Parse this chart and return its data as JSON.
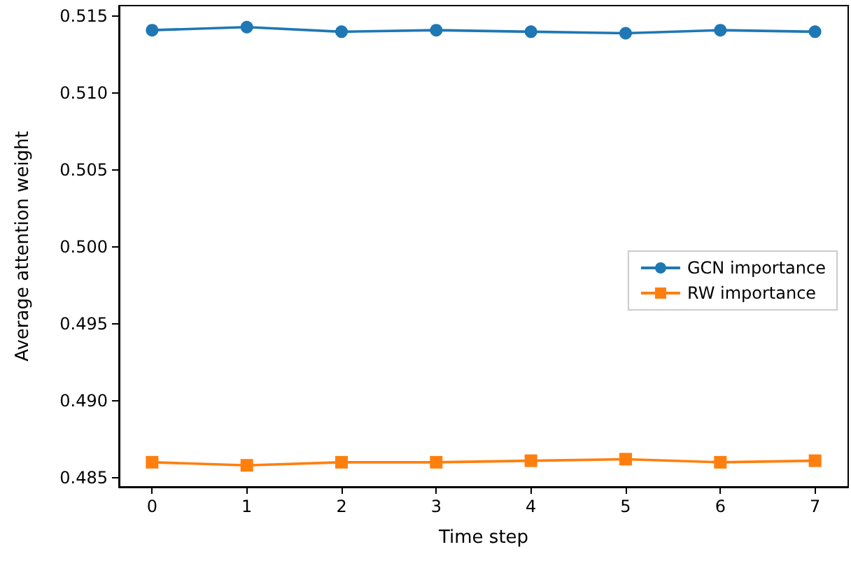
{
  "chart_data": {
    "type": "line",
    "xlabel": "Time step",
    "ylabel": "Average attention weight",
    "x": [
      0,
      1,
      2,
      3,
      4,
      5,
      6,
      7
    ],
    "series": [
      {
        "name": "GCN importance",
        "color": "#1f77b4",
        "marker": "circle",
        "values": [
          0.5141,
          0.5143,
          0.514,
          0.5141,
          0.514,
          0.5139,
          0.5141,
          0.514
        ]
      },
      {
        "name": "RW importance",
        "color": "#ff7f0e",
        "marker": "square",
        "values": [
          0.486,
          0.4858,
          0.486,
          0.486,
          0.4861,
          0.4862,
          0.486,
          0.4861
        ]
      }
    ],
    "xlim": [
      -0.35,
      7.35
    ],
    "xticks": [
      0,
      1,
      2,
      3,
      4,
      5,
      6,
      7
    ],
    "ylim": [
      0.4844,
      0.5157
    ],
    "yticks": [
      0.485,
      {
        "value": 0.49,
        "label": "0.490"
      },
      0.495,
      {
        "value": 0.5,
        "label": "0.500"
      },
      0.505,
      {
        "value": 0.51,
        "label": "0.510"
      },
      0.515
    ],
    "legend": "right",
    "line_style": "solid"
  }
}
